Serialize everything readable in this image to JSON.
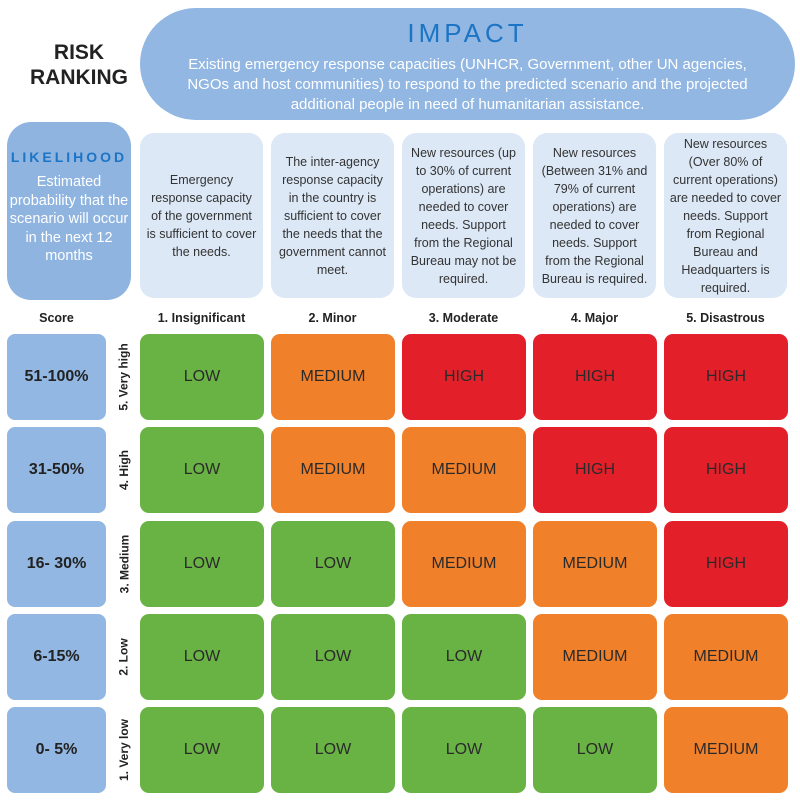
{
  "title": "RISK RANKING",
  "impact": {
    "title": "IMPACT",
    "text": "Existing emergency response capacities (UNHCR, Government, other UN agencies, NGOs and host communities) to respond to the predicted scenario and the projected additional people in need of humanitarian assistance."
  },
  "likelihood": {
    "title": "LIKELIHOOD",
    "text": "Estimated probability that the scenario will occur in the next 12 months"
  },
  "score_header": "Score",
  "columns": [
    {
      "label": "1. Insignificant",
      "desc": "Emergency response capacity of the government is sufficient to cover the needs."
    },
    {
      "label": "2. Minor",
      "desc": "The inter-agency response capacity in the country is sufficient to cover the needs that the government cannot meet."
    },
    {
      "label": "3. Moderate",
      "desc": "New resources (up to 30% of current operations) are needed to cover needs. Support from the Regional Bureau may not be required."
    },
    {
      "label": "4. Major",
      "desc": "New resources (Between 31% and 79% of current operations) are needed to cover needs. Support from the Regional Bureau is required."
    },
    {
      "label": "5. Disastrous",
      "desc": "New resources (Over 80% of current operations) are needed to cover needs. Support from Regional Bureau and Headquarters is required."
    }
  ],
  "rows": [
    {
      "score": "51-100%",
      "label": "5. Very high",
      "cells": [
        "LOW",
        "MEDIUM",
        "HIGH",
        "HIGH",
        "HIGH"
      ]
    },
    {
      "score": "31-50%",
      "label": "4. High",
      "cells": [
        "LOW",
        "MEDIUM",
        "MEDIUM",
        "HIGH",
        "HIGH"
      ]
    },
    {
      "score": "16- 30%",
      "label": "3. Medium",
      "cells": [
        "LOW",
        "LOW",
        "MEDIUM",
        "MEDIUM",
        "HIGH"
      ]
    },
    {
      "score": "6-15%",
      "label": "2. Low",
      "cells": [
        "LOW",
        "LOW",
        "LOW",
        "MEDIUM",
        "MEDIUM"
      ]
    },
    {
      "score": "0- 5%",
      "label": "1. Very low",
      "cells": [
        "LOW",
        "LOW",
        "LOW",
        "LOW",
        "MEDIUM"
      ]
    }
  ],
  "colors": {
    "LOW": "#69b244",
    "MEDIUM": "#f0802a",
    "HIGH": "#e3202a"
  }
}
